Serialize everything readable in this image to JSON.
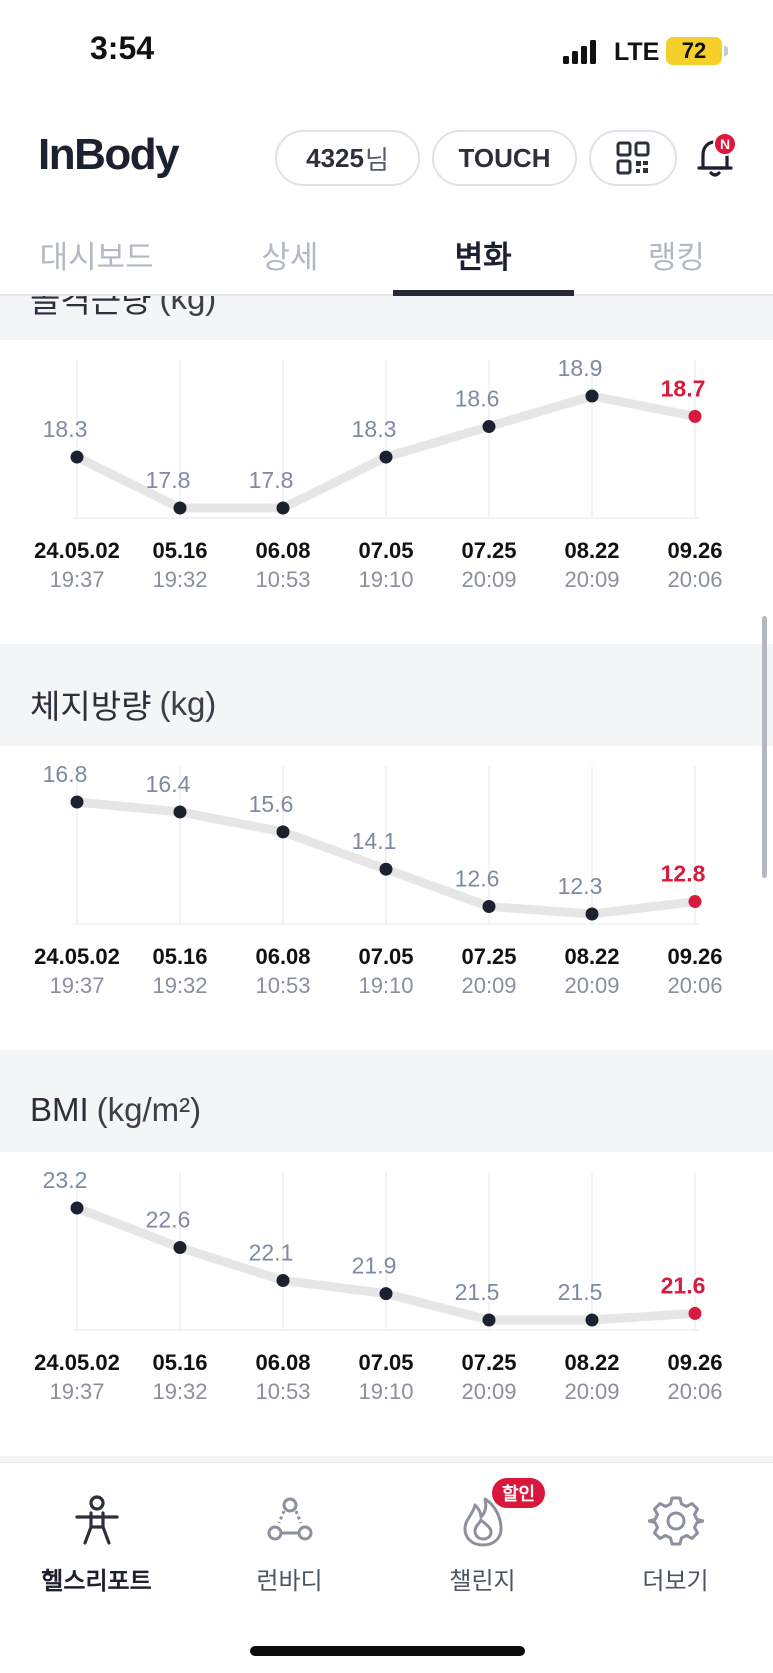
{
  "status_bar": {
    "time": "3:54",
    "network": "LTE",
    "battery": "72"
  },
  "header": {
    "logo": "InBody",
    "user_id": "4325",
    "user_suffix": "님",
    "touch_label": "TOUCH",
    "notification_badge": "N"
  },
  "tabs": [
    {
      "label": "대시보드",
      "active": false
    },
    {
      "label": "상세",
      "active": false
    },
    {
      "label": "변화",
      "active": true
    },
    {
      "label": "랭킹",
      "active": false
    }
  ],
  "dates": [
    "24.05.02",
    "05.16",
    "06.08",
    "07.05",
    "07.25",
    "08.22",
    "09.26"
  ],
  "times": [
    "19:37",
    "19:32",
    "10:53",
    "19:10",
    "20:09",
    "20:09",
    "20:06"
  ],
  "colors": {
    "accent": "#d81a3c",
    "point": "#1c2130",
    "line": "#e6e6e6",
    "value": "#7d8aa0"
  },
  "chart_data": [
    {
      "type": "line",
      "title": "골격근량",
      "unit": "(kg)",
      "categories": [
        "24.05.02",
        "05.16",
        "06.08",
        "07.05",
        "07.25",
        "08.22",
        "09.26"
      ],
      "values": [
        18.3,
        17.8,
        17.8,
        18.3,
        18.6,
        18.9,
        18.7
      ],
      "labels": [
        "18.3",
        "17.8",
        "17.8",
        "18.3",
        "18.6",
        "18.9",
        "18.7"
      ]
    },
    {
      "type": "line",
      "title": "체지방량",
      "unit": "(kg)",
      "categories": [
        "24.05.02",
        "05.16",
        "06.08",
        "07.05",
        "07.25",
        "08.22",
        "09.26"
      ],
      "values": [
        16.8,
        16.4,
        15.6,
        14.1,
        12.6,
        12.3,
        12.8
      ],
      "labels": [
        "16.8",
        "16.4",
        "15.6",
        "14.1",
        "12.6",
        "12.3",
        "12.8"
      ]
    },
    {
      "type": "line",
      "title": "BMI",
      "unit": "(kg/m²)",
      "categories": [
        "24.05.02",
        "05.16",
        "06.08",
        "07.05",
        "07.25",
        "08.22",
        "09.26"
      ],
      "values": [
        23.2,
        22.6,
        22.1,
        21.9,
        21.5,
        21.5,
        21.6
      ],
      "labels": [
        "23.2",
        "22.6",
        "22.1",
        "21.9",
        "21.5",
        "21.5",
        "21.6"
      ]
    }
  ],
  "bottom_nav": [
    {
      "label": "헬스리포트",
      "icon": "health-report-icon",
      "active": true
    },
    {
      "label": "런바디",
      "icon": "runbody-icon",
      "active": false
    },
    {
      "label": "챌린지",
      "icon": "challenge-flame-icon",
      "active": false
    },
    {
      "label": "더보기",
      "icon": "gear-icon",
      "active": false
    }
  ],
  "challenge_badge": "할인"
}
